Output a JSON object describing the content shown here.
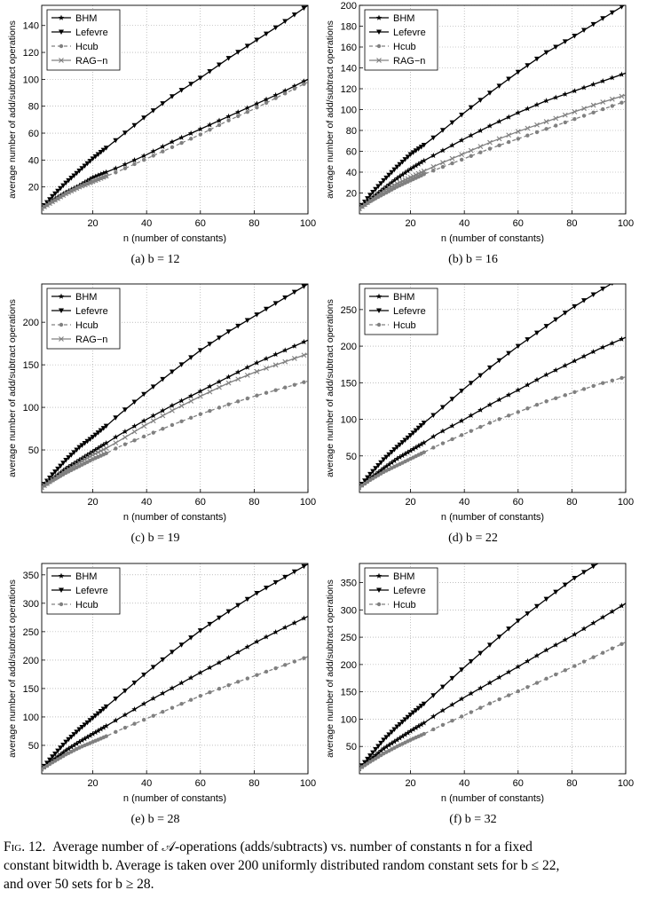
{
  "chart_data": [
    {
      "type": "line",
      "subcaption": "(a)  b = 12",
      "xlabel": "n (number of constants)",
      "ylabel": "average number of add/subtract operations",
      "xlim": [
        1,
        100
      ],
      "ylim": [
        0,
        155
      ],
      "xticks": [
        20,
        40,
        60,
        80,
        100
      ],
      "yticks": [
        20,
        40,
        60,
        80,
        100,
        120,
        140
      ],
      "grid": true,
      "legend_position": "top-left",
      "series": [
        {
          "name": "BHM",
          "marker": "star",
          "dash": false,
          "color": "#000000",
          "x": [
            1,
            5,
            10,
            15,
            20,
            25,
            30,
            40,
            50,
            60,
            70,
            80,
            90,
            100
          ],
          "y": [
            4,
            10,
            16,
            21,
            27,
            31,
            35,
            44,
            54,
            63,
            72,
            81,
            90,
            100
          ]
        },
        {
          "name": "Lefevre",
          "marker": "triangle-down",
          "dash": false,
          "color": "#000000",
          "x": [
            1,
            5,
            10,
            15,
            20,
            25,
            30,
            40,
            50,
            60,
            70,
            80,
            90,
            100
          ],
          "y": [
            4,
            13,
            23,
            32,
            41,
            49,
            57,
            73,
            88,
            101,
            115,
            128,
            141,
            155
          ]
        },
        {
          "name": "Hcub",
          "marker": "circle",
          "dash": true,
          "color": "#808080",
          "x": [
            1,
            5,
            10,
            15,
            20,
            25,
            30,
            40,
            50,
            60,
            70,
            80,
            90,
            100
          ],
          "y": [
            4,
            9,
            15,
            20,
            24,
            28,
            32,
            41,
            50,
            59,
            69,
            78,
            88,
            98
          ]
        },
        {
          "name": "RAG−n",
          "marker": "x",
          "dash": false,
          "color": "#808080",
          "x": [
            1,
            5,
            10,
            15,
            20,
            25
          ],
          "y": [
            4,
            9,
            15,
            20,
            24,
            28
          ]
        }
      ]
    },
    {
      "type": "line",
      "subcaption": "(b)  b = 16",
      "xlabel": "n (number of constants)",
      "ylabel": "average number of add/subtract operations",
      "xlim": [
        1,
        100
      ],
      "ylim": [
        0,
        200
      ],
      "xticks": [
        20,
        40,
        60,
        80,
        100
      ],
      "yticks": [
        20,
        40,
        60,
        80,
        100,
        120,
        140,
        160,
        180,
        200
      ],
      "grid": true,
      "legend_position": "top-left",
      "series": [
        {
          "name": "BHM",
          "marker": "star",
          "dash": false,
          "color": "#000000",
          "x": [
            1,
            5,
            10,
            15,
            20,
            25,
            30,
            40,
            50,
            60,
            70,
            80,
            90,
            100
          ],
          "y": [
            5,
            14,
            24,
            34,
            43,
            51,
            58,
            72,
            85,
            97,
            108,
            117,
            126,
            135
          ]
        },
        {
          "name": "Lefevre",
          "marker": "triangle-down",
          "dash": false,
          "color": "#000000",
          "x": [
            1,
            5,
            10,
            15,
            20,
            25,
            30,
            40,
            50,
            60,
            70,
            80,
            90,
            100
          ],
          "y": [
            5,
            18,
            32,
            45,
            57,
            66,
            76,
            97,
            117,
            136,
            154,
            169,
            185,
            201
          ]
        },
        {
          "name": "Hcub",
          "marker": "circle",
          "dash": true,
          "color": "#808080",
          "x": [
            1,
            5,
            10,
            15,
            20,
            25,
            30,
            40,
            50,
            60,
            70,
            80,
            90,
            100
          ],
          "y": [
            5,
            12,
            19,
            26,
            32,
            38,
            43,
            53,
            63,
            72,
            81,
            90,
            99,
            108
          ]
        },
        {
          "name": "RAG−n",
          "marker": "x",
          "dash": false,
          "color": "#808080",
          "x": [
            1,
            5,
            10,
            15,
            20,
            25,
            30,
            40,
            50,
            60,
            70,
            80,
            90,
            100
          ],
          "y": [
            5,
            13,
            22,
            29,
            35,
            41,
            47,
            58,
            69,
            79,
            88,
            97,
            106,
            114
          ]
        }
      ]
    },
    {
      "type": "line",
      "subcaption": "(c)  b = 19",
      "xlabel": "n (number of constants)",
      "ylabel": "average number of add/subtract operations",
      "xlim": [
        1,
        100
      ],
      "ylim": [
        0,
        245
      ],
      "xticks": [
        20,
        40,
        60,
        80,
        100
      ],
      "yticks": [
        50,
        100,
        150,
        200
      ],
      "grid": true,
      "legend_position": "top-left",
      "series": [
        {
          "name": "BHM",
          "marker": "star",
          "dash": false,
          "color": "#000000",
          "x": [
            1,
            5,
            10,
            15,
            20,
            25,
            30,
            40,
            50,
            60,
            70,
            80,
            90,
            100
          ],
          "y": [
            6,
            16,
            28,
            38,
            48,
            58,
            68,
            86,
            103,
            119,
            135,
            151,
            165,
            179
          ]
        },
        {
          "name": "Lefevre",
          "marker": "triangle-down",
          "dash": false,
          "color": "#000000",
          "x": [
            1,
            5,
            10,
            15,
            20,
            25,
            30,
            40,
            50,
            60,
            70,
            80,
            90,
            100
          ],
          "y": [
            6,
            21,
            38,
            53,
            65,
            78,
            92,
            118,
            143,
            167,
            188,
            207,
            226,
            245
          ]
        },
        {
          "name": "Hcub",
          "marker": "circle",
          "dash": true,
          "color": "#808080",
          "x": [
            1,
            5,
            10,
            15,
            20,
            25,
            30,
            40,
            50,
            60,
            70,
            80,
            90,
            100
          ],
          "y": [
            6,
            14,
            23,
            31,
            39,
            46,
            54,
            67,
            80,
            92,
            103,
            113,
            122,
            131
          ]
        },
        {
          "name": "RAG−n",
          "marker": "x",
          "dash": false,
          "color": "#808080",
          "x": [
            1,
            5,
            10,
            15,
            20,
            25,
            30,
            40,
            50,
            60,
            70,
            80,
            90,
            100
          ],
          "y": [
            6,
            15,
            26,
            35,
            44,
            52,
            61,
            80,
            97,
            113,
            128,
            141,
            152,
            163
          ]
        }
      ]
    },
    {
      "type": "line",
      "subcaption": "(d)  b = 22",
      "xlabel": "n (number of constants)",
      "ylabel": "average number of add/subtract operations",
      "xlim": [
        1,
        100
      ],
      "ylim": [
        0,
        285
      ],
      "xticks": [
        20,
        40,
        60,
        80,
        100
      ],
      "yticks": [
        50,
        100,
        150,
        200,
        250
      ],
      "grid": true,
      "legend_position": "top-left",
      "series": [
        {
          "name": "BHM",
          "marker": "star",
          "dash": false,
          "color": "#000000",
          "x": [
            1,
            5,
            10,
            15,
            20,
            25,
            30,
            40,
            50,
            60,
            70,
            80,
            90,
            100
          ],
          "y": [
            7,
            19,
            33,
            46,
            57,
            68,
            80,
            100,
            121,
            140,
            160,
            178,
            196,
            212
          ]
        },
        {
          "name": "Lefevre",
          "marker": "triangle-down",
          "dash": false,
          "color": "#000000",
          "x": [
            1,
            5,
            10,
            15,
            20,
            25,
            30,
            40,
            50,
            60,
            70,
            80,
            90,
            100
          ],
          "y": [
            7,
            25,
            45,
            62,
            78,
            95,
            110,
            142,
            172,
            200,
            226,
            252,
            275,
            297
          ]
        },
        {
          "name": "Hcub",
          "marker": "circle",
          "dash": true,
          "color": "#808080",
          "x": [
            1,
            5,
            10,
            15,
            20,
            25,
            30,
            40,
            50,
            60,
            70,
            80,
            90,
            100
          ],
          "y": [
            7,
            17,
            28,
            37,
            46,
            55,
            64,
            80,
            96,
            110,
            124,
            136,
            148,
            158
          ]
        }
      ]
    },
    {
      "type": "line",
      "subcaption": "(e)  b = 28",
      "xlabel": "n (number of constants)",
      "ylabel": "average number of add/subtract operations",
      "xlim": [
        1,
        100
      ],
      "ylim": [
        0,
        370
      ],
      "xticks": [
        20,
        40,
        60,
        80,
        100
      ],
      "yticks": [
        50,
        100,
        150,
        200,
        250,
        300,
        350
      ],
      "grid": true,
      "legend_position": "top-left",
      "series": [
        {
          "name": "BHM",
          "marker": "star",
          "dash": false,
          "color": "#000000",
          "x": [
            1,
            5,
            10,
            15,
            20,
            25,
            30,
            40,
            50,
            60,
            70,
            80,
            90,
            100
          ],
          "y": [
            8,
            23,
            41,
            56,
            70,
            84,
            98,
            126,
            152,
            178,
            203,
            230,
            254,
            277
          ]
        },
        {
          "name": "Lefevre",
          "marker": "triangle-down",
          "dash": false,
          "color": "#000000",
          "x": [
            1,
            5,
            10,
            15,
            20,
            25,
            30,
            40,
            50,
            60,
            70,
            80,
            90,
            100
          ],
          "y": [
            8,
            30,
            56,
            78,
            98,
            118,
            138,
            178,
            216,
            252,
            284,
            315,
            342,
            369
          ]
        },
        {
          "name": "Hcub",
          "marker": "circle",
          "dash": true,
          "color": "#808080",
          "x": [
            1,
            5,
            10,
            15,
            20,
            25,
            30,
            40,
            50,
            60,
            70,
            80,
            90,
            100
          ],
          "y": [
            8,
            20,
            34,
            46,
            56,
            66,
            77,
            97,
            117,
            137,
            155,
            172,
            189,
            206
          ]
        }
      ]
    },
    {
      "type": "line",
      "subcaption": "(f)  b = 32",
      "xlabel": "n (number of constants)",
      "ylabel": "average number of add/subtract operations",
      "xlim": [
        1,
        100
      ],
      "ylim": [
        0,
        385
      ],
      "xticks": [
        20,
        40,
        60,
        80,
        100
      ],
      "yticks": [
        50,
        100,
        150,
        200,
        250,
        300,
        350
      ],
      "grid": true,
      "legend_position": "top-left",
      "series": [
        {
          "name": "BHM",
          "marker": "star",
          "dash": false,
          "color": "#000000",
          "x": [
            1,
            5,
            10,
            15,
            20,
            25,
            30,
            40,
            50,
            60,
            70,
            80,
            90,
            100
          ],
          "y": [
            9,
            26,
            46,
            62,
            78,
            93,
            110,
            140,
            168,
            196,
            225,
            252,
            282,
            312
          ]
        },
        {
          "name": "Lefevre",
          "marker": "triangle-down",
          "dash": false,
          "color": "#000000",
          "x": [
            1,
            5,
            10,
            15,
            20,
            25,
            30,
            40,
            50,
            60,
            70,
            80,
            90
          ],
          "y": [
            9,
            33,
            62,
            86,
            108,
            128,
            150,
            195,
            238,
            280,
            318,
            355,
            386
          ]
        },
        {
          "name": "Hcub",
          "marker": "circle",
          "dash": true,
          "color": "#808080",
          "x": [
            1,
            5,
            10,
            15,
            20,
            25,
            30,
            40,
            50,
            60,
            70,
            80,
            90,
            100
          ],
          "y": [
            9,
            22,
            37,
            50,
            62,
            73,
            85,
            107,
            130,
            151,
            173,
            195,
            218,
            241
          ]
        }
      ]
    }
  ],
  "caption": {
    "label": "Fig. 12.",
    "line1": "Average number of 𝒜-operations (adds/subtracts) vs. number of constants n for a fixed",
    "line2": "constant bitwidth b. Average is taken over 200 uniformly distributed random constant sets for b ≤ 22,",
    "line3": "and over 50 sets for b ≥ 28."
  }
}
